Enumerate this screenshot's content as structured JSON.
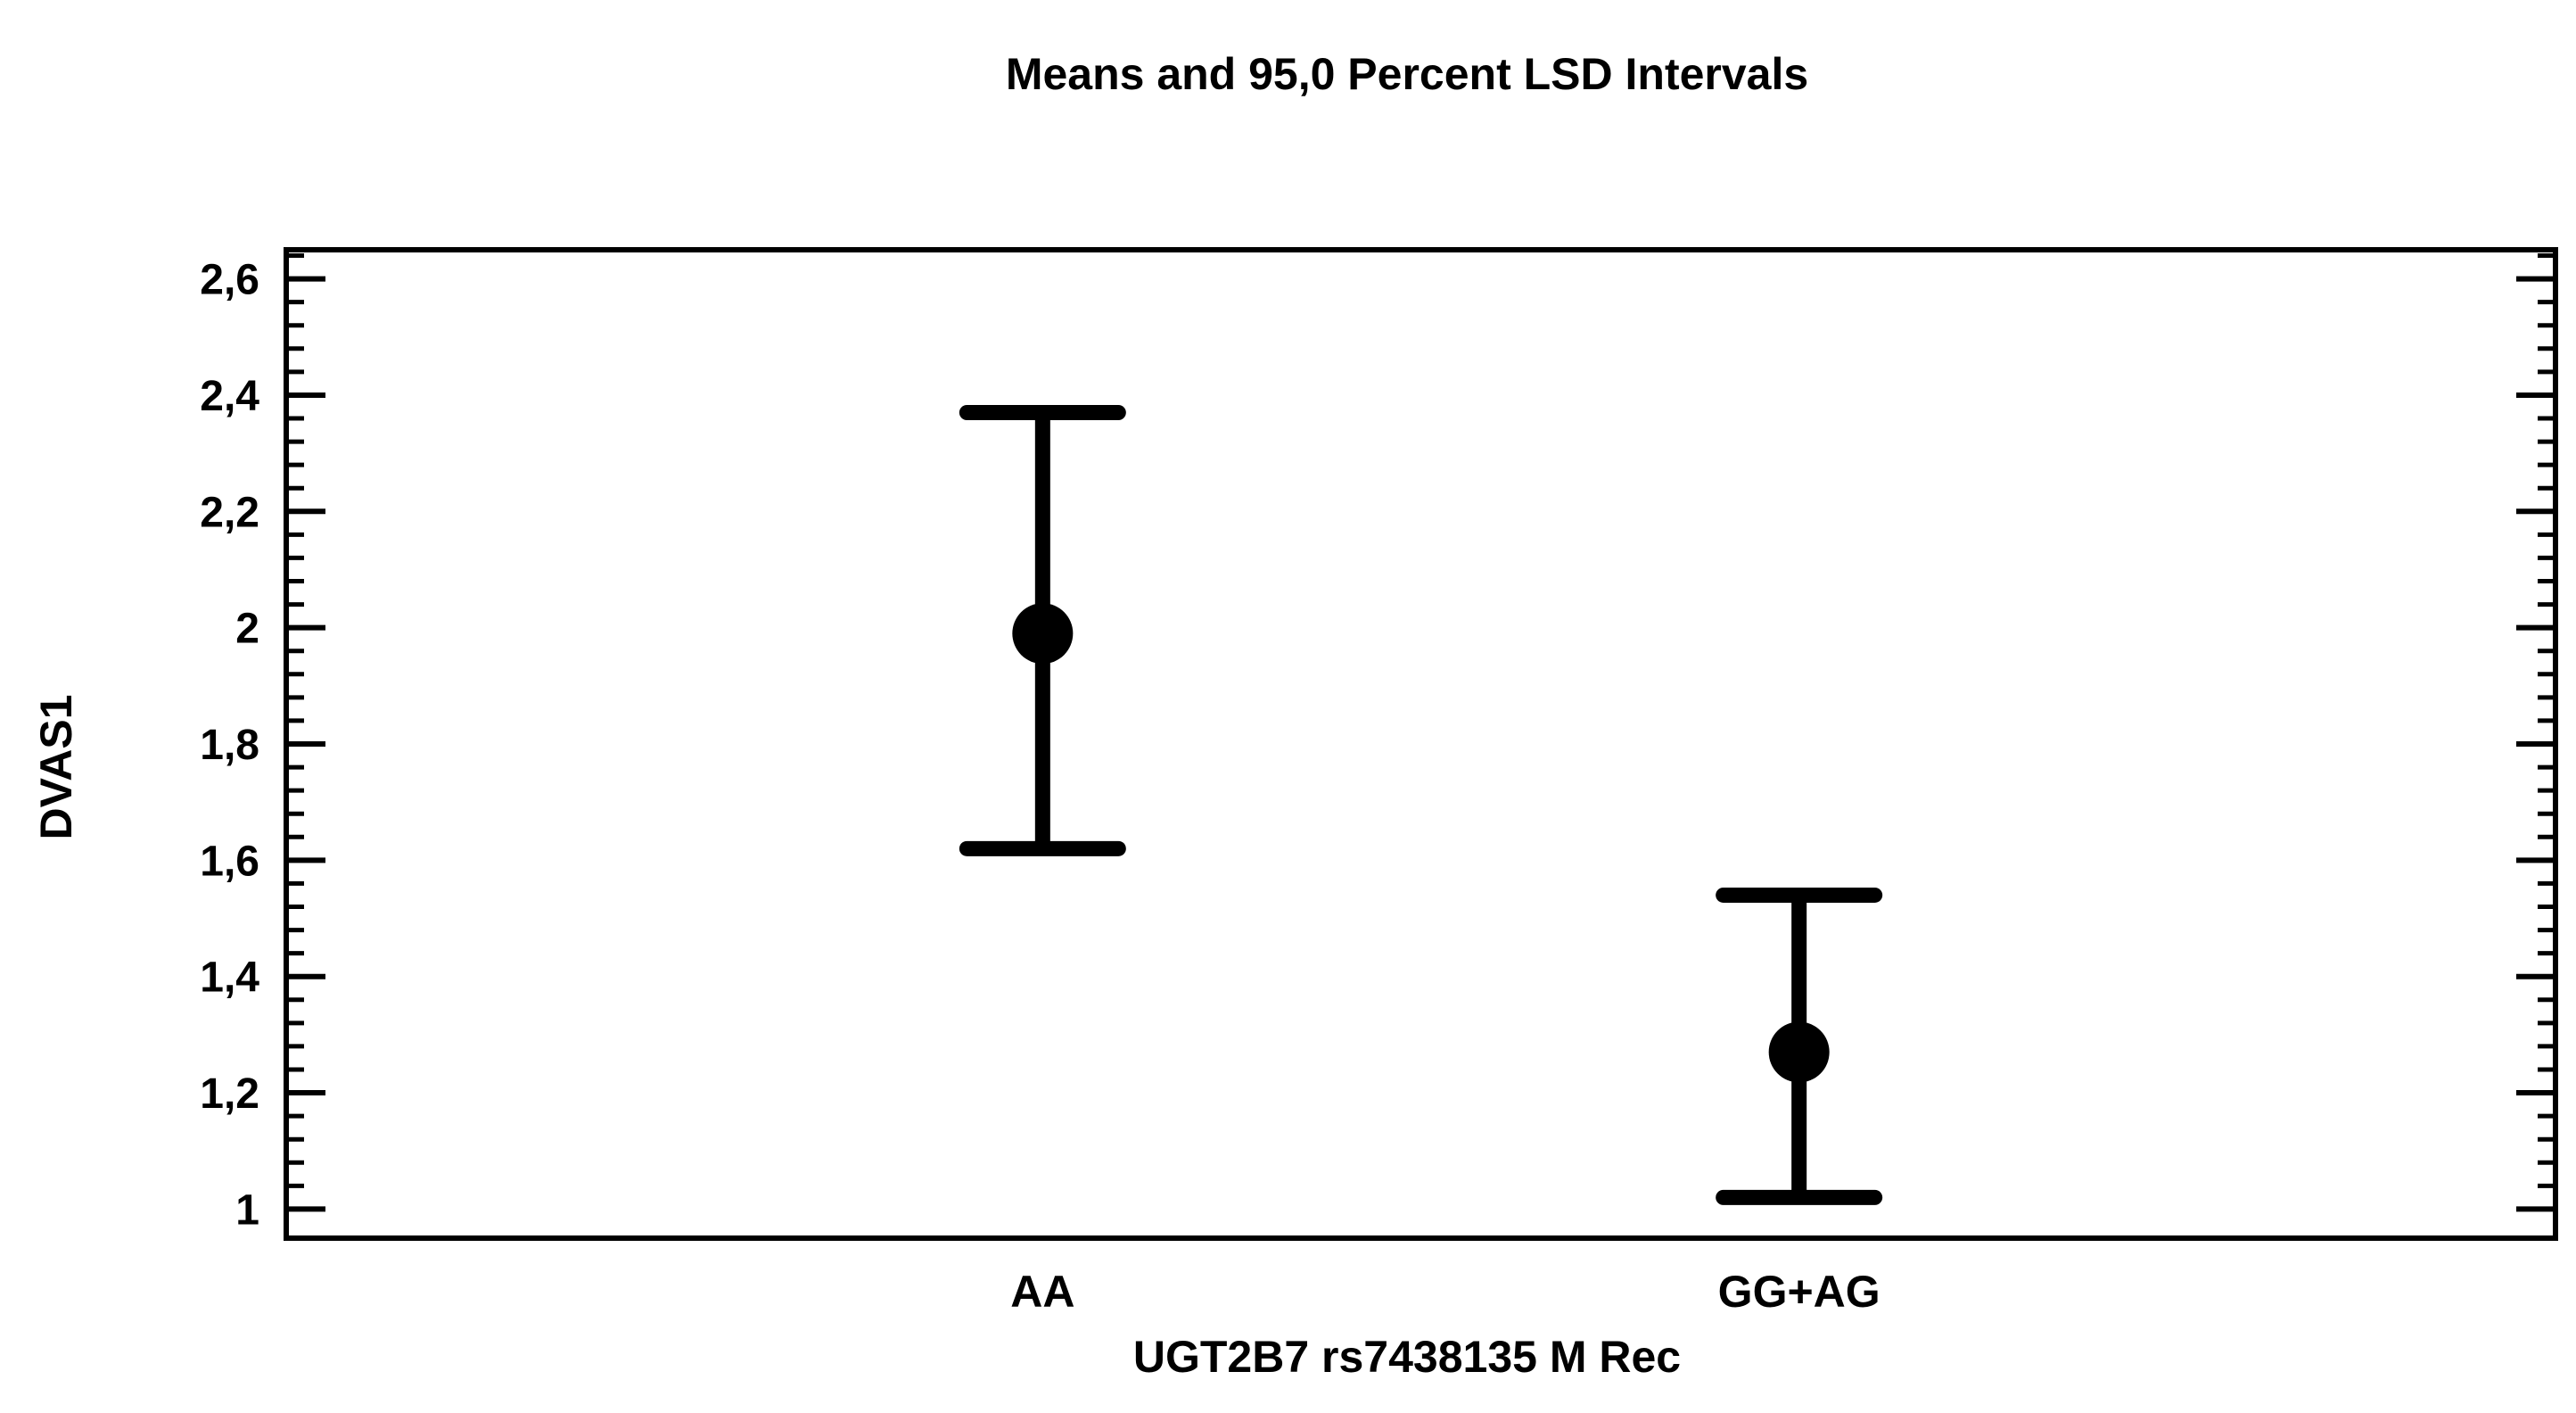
{
  "chart_data": {
    "type": "errorbar",
    "title": "Means and 95,0 Percent LSD Intervals",
    "xlabel": "UGT2B7 rs7438135 M Rec",
    "ylabel": "DVAS1",
    "categories": [
      "AA",
      "GG+AG"
    ],
    "means": [
      1.99,
      1.27
    ],
    "lower": [
      1.62,
      1.02
    ],
    "upper": [
      2.37,
      1.54
    ],
    "ylim": [
      0.95,
      2.65
    ],
    "yticks": [
      1,
      1.2,
      1.4,
      1.6,
      1.8,
      2,
      2.2,
      2.4,
      2.6
    ],
    "ytick_labels": [
      "1",
      "1,2",
      "1,4",
      "1,6",
      "1,8",
      "2",
      "2,2",
      "2,4",
      "2,6"
    ],
    "grid": false,
    "color": "#000000"
  }
}
